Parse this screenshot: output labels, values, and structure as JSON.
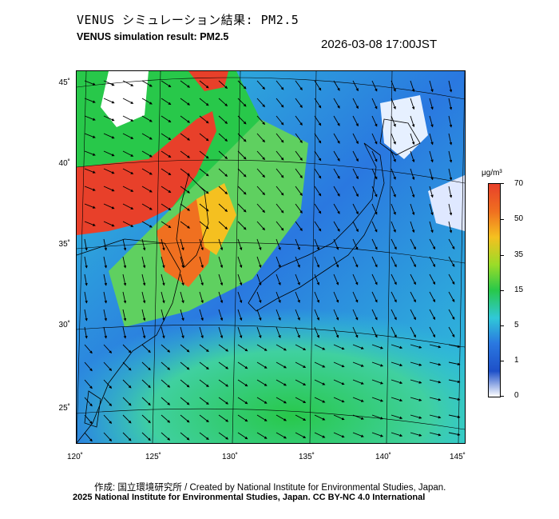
{
  "header": {
    "title_jp": "VENUS シミュレーション結果: PM2.5",
    "title_en": "VENUS simulation result: PM2.5",
    "timestamp": "2026-03-08 17:00JST"
  },
  "map": {
    "lat_ticks": [
      "45˚",
      "40˚",
      "35˚",
      "30˚",
      "25˚"
    ],
    "lon_ticks": [
      "120˚",
      "125˚",
      "130˚",
      "135˚",
      "140˚",
      "145˚"
    ]
  },
  "colorbar": {
    "unit": "μg/m³",
    "labels": [
      "70",
      "50",
      "35",
      "15",
      "5",
      "1",
      "0"
    ],
    "colors": [
      "#e8402a",
      "#f07020",
      "#f5c020",
      "#9adc28",
      "#28c84a",
      "#30c8d8",
      "#2a78e0",
      "#1e50c8",
      "#ffffff"
    ]
  },
  "footer": {
    "credit": "作成: 国立環境研究所 / Created by National Institute for Environmental Studies, Japan.",
    "copyright": "2025 National Institute for Environmental Studies, Japan. CC BY-NC 4.0 International"
  }
}
